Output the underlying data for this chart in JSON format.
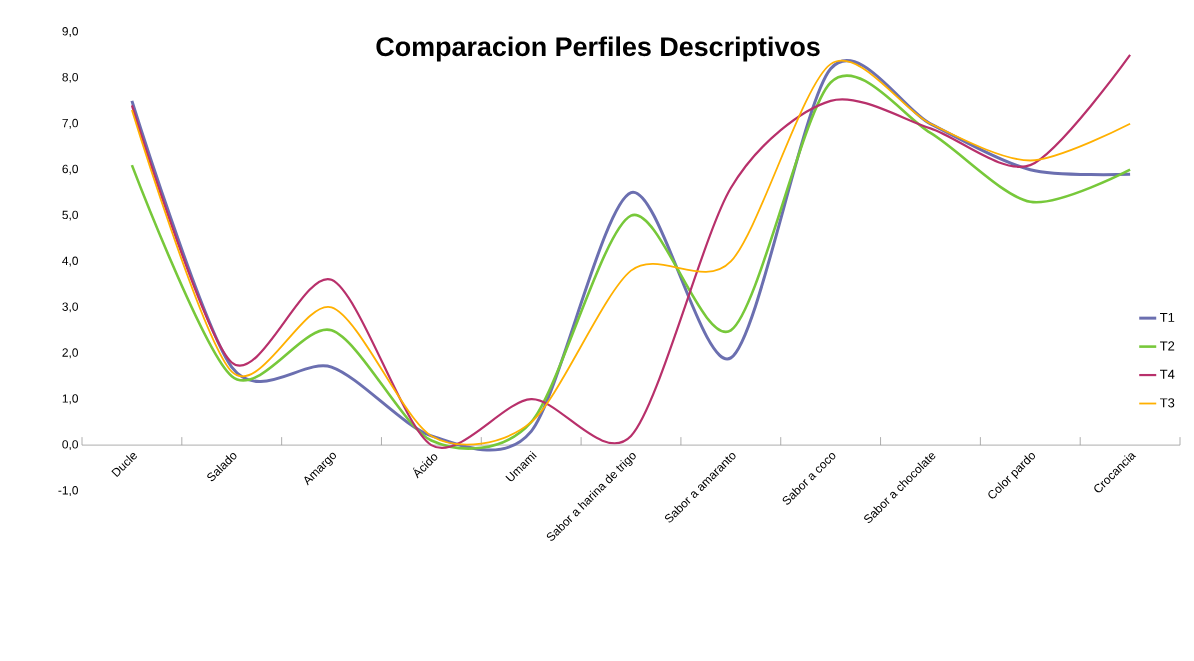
{
  "chart_data": {
    "type": "line",
    "title": "Comparacion Perfiles Descriptivos",
    "categories": [
      "Ducle",
      "Salado",
      "Amargo",
      "Ácido",
      "Umami",
      "Sabor a harina de trigo",
      "Sabor a amaranto",
      "Sabor a coco",
      "Sabor a chocolate",
      "Color pardo",
      "Crocancia"
    ],
    "series": [
      {
        "name": "T1",
        "color": "#6b6fb0",
        "values": [
          7.5,
          1.7,
          1.7,
          0.2,
          0.3,
          5.5,
          1.9,
          8.2,
          7.0,
          6.0,
          5.9
        ]
      },
      {
        "name": "T2",
        "color": "#77c83a",
        "values": [
          6.1,
          1.5,
          2.5,
          0.1,
          0.5,
          5.0,
          2.5,
          7.9,
          6.8,
          5.3,
          6.0
        ]
      },
      {
        "name": "T4",
        "color": "#b8306b",
        "values": [
          7.4,
          1.8,
          3.6,
          0.0,
          1.0,
          0.2,
          5.6,
          7.5,
          6.9,
          6.1,
          8.5
        ]
      },
      {
        "name": "T3",
        "color": "#ffb000",
        "values": [
          7.3,
          1.6,
          3.0,
          0.2,
          0.5,
          3.8,
          4.0,
          8.3,
          7.0,
          6.2,
          7.0
        ]
      }
    ],
    "ylim": [
      -1,
      9
    ],
    "yticks": [
      {
        "value": -1,
        "label": "-1,0"
      },
      {
        "value": 0,
        "label": "0,0"
      },
      {
        "value": 1,
        "label": "1,0"
      },
      {
        "value": 2,
        "label": "2,0"
      },
      {
        "value": 3,
        "label": "3,0"
      },
      {
        "value": 4,
        "label": "4,0"
      },
      {
        "value": 5,
        "label": "5,0"
      },
      {
        "value": 6,
        "label": "6,0"
      },
      {
        "value": 7,
        "label": "7,0"
      },
      {
        "value": 8,
        "label": "8,0"
      },
      {
        "value": 9,
        "label": "9,0"
      }
    ],
    "grid": false,
    "legend": "right",
    "marker": "none",
    "line_style": "solid"
  }
}
